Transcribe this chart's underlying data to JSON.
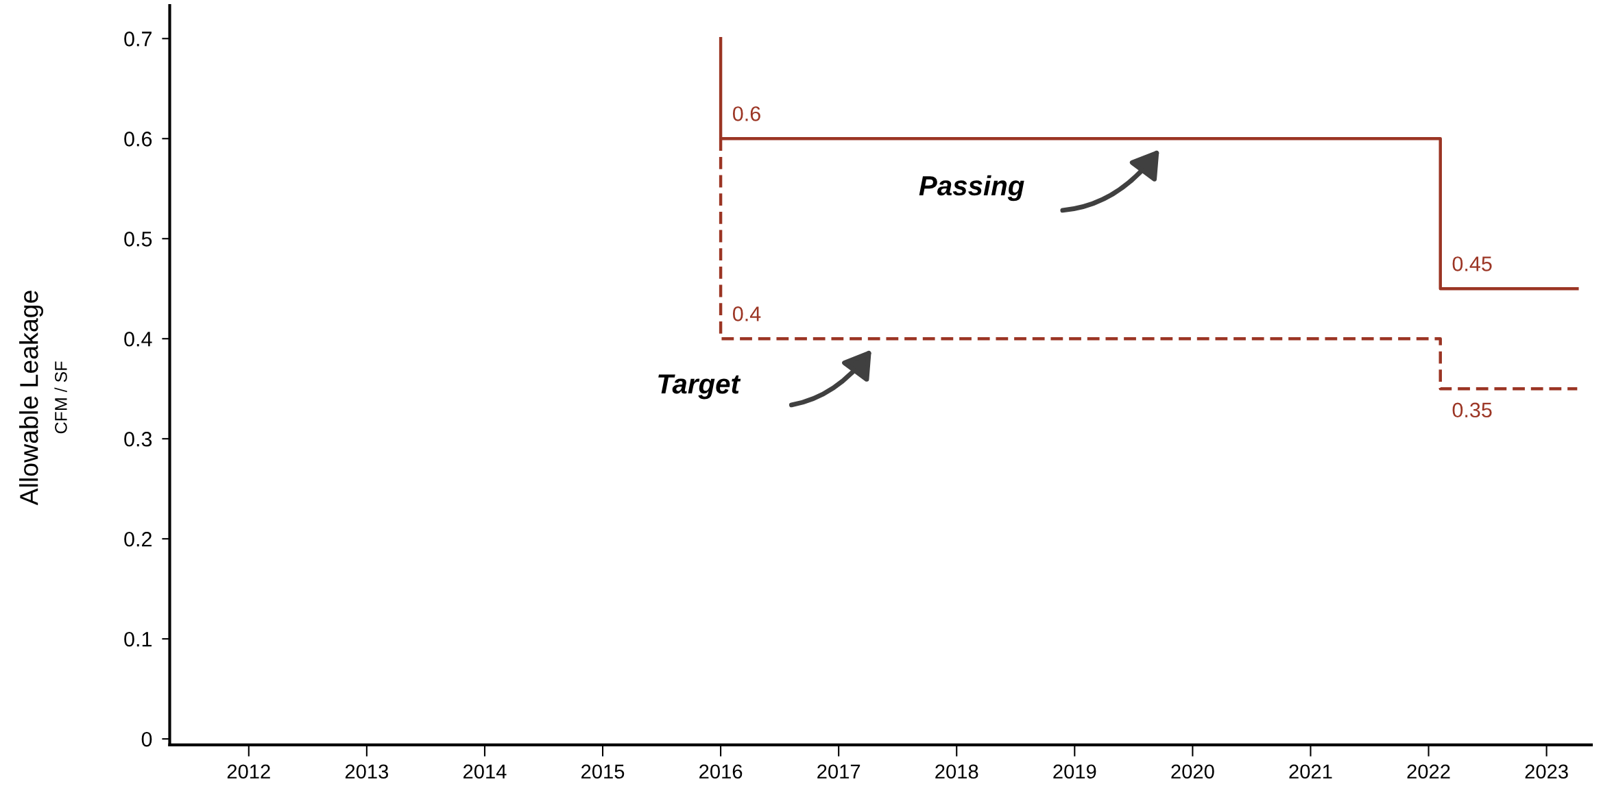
{
  "chart_data": {
    "type": "step",
    "ylabel": "Allowable Leakage",
    "annotations": [
      "CFM / SF"
    ],
    "xlim": [
      2011.33,
      2023.38
    ],
    "xticks": [
      2012,
      2013,
      2014,
      2015,
      2016,
      2017,
      2018,
      2019,
      2020,
      2021,
      2022,
      2023
    ],
    "ylim": [
      -0.006,
      0.733
    ],
    "yticks": [
      0,
      0.1,
      0.2,
      0.3,
      0.4,
      0.5,
      0.6,
      0.7
    ],
    "grid": false,
    "legend": false,
    "marker": "none",
    "series": [
      {
        "name": "Passing",
        "color": "#9b3524",
        "line_style": "solid",
        "x": [
          2016,
          2016,
          2022.1,
          2023.26
        ],
        "values": [
          0.7,
          0.6,
          0.45,
          0.45
        ],
        "value_labels": [
          null,
          "0.6",
          "0.45",
          null
        ]
      },
      {
        "name": "Target",
        "color": "#9b3524",
        "line_style": "dashed",
        "x": [
          2016,
          2016,
          2022.1,
          2023.26
        ],
        "values": [
          0.6,
          0.4,
          0.35,
          0.35
        ],
        "value_labels": [
          null,
          "0.4",
          "0.35",
          null
        ]
      }
    ]
  }
}
